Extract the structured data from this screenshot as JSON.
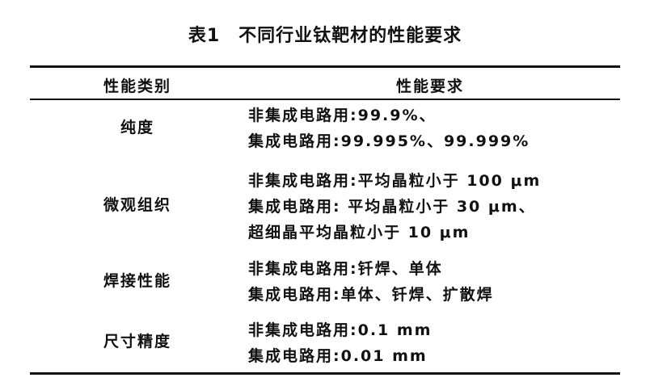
{
  "title": "表1　不同行业钛靶材的性能要求",
  "header": {
    "col1": "性能类别",
    "col2": "性能要求"
  },
  "rows": [
    {
      "category": "纯度",
      "lines": [
        "非集成电路用:99.9%、",
        "集成电路用:99.995%、99.999%"
      ]
    },
    {
      "category": "微观组织",
      "lines": [
        "非集成电路用:平均晶粒小于 100 μm",
        "集成电路用: 平均晶粒小于 30 μm、",
        "超细晶平均晶粒小于 10 μm"
      ]
    },
    {
      "category": "焊接性能",
      "lines": [
        "非集成电路用:钎焊、单体",
        "集成电路用:单体、钎焊、扩散焊"
      ]
    },
    {
      "category": "尺寸精度",
      "lines": [
        "非集成电路用:0.1 mm",
        "集成电路用:0.01 mm"
      ]
    }
  ]
}
